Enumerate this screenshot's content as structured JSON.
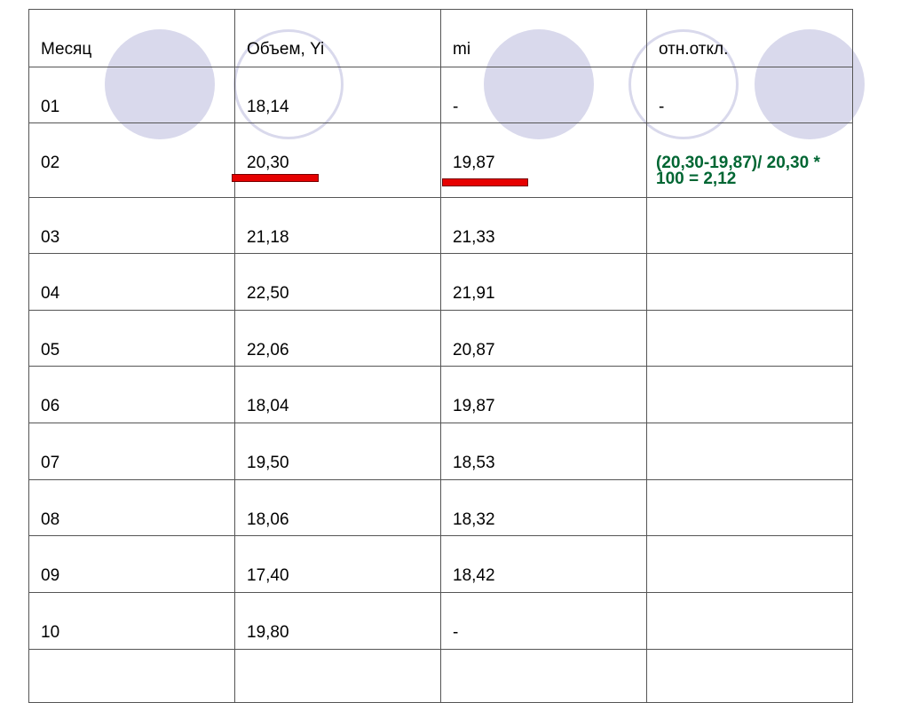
{
  "colors": {
    "circle": "#d9d9ec",
    "formula": "#006633",
    "underline": "#e60000"
  },
  "table": {
    "headers": [
      "Месяц",
      "Объем, Yi",
      "mi",
      "отн.откл."
    ],
    "rows": [
      [
        "01",
        "18,14",
        "-",
        "-"
      ],
      [
        "02",
        "20,30",
        "19,87",
        "(20,30-19,87)/ 20,30 * 100 = 2,12"
      ],
      [
        "03",
        "21,18",
        "21,33",
        ""
      ],
      [
        "04",
        "22,50",
        "21,91",
        ""
      ],
      [
        "05",
        "22,06",
        "20,87",
        ""
      ],
      [
        "06",
        "18,04",
        "19,87",
        ""
      ],
      [
        "07",
        "19,50",
        "18,53",
        ""
      ],
      [
        "08",
        "18,06",
        "18,32",
        ""
      ],
      [
        "09",
        "17,40",
        "18,42",
        ""
      ],
      [
        "10",
        "19,80",
        "-",
        ""
      ],
      [
        "",
        "",
        "",
        ""
      ]
    ]
  }
}
